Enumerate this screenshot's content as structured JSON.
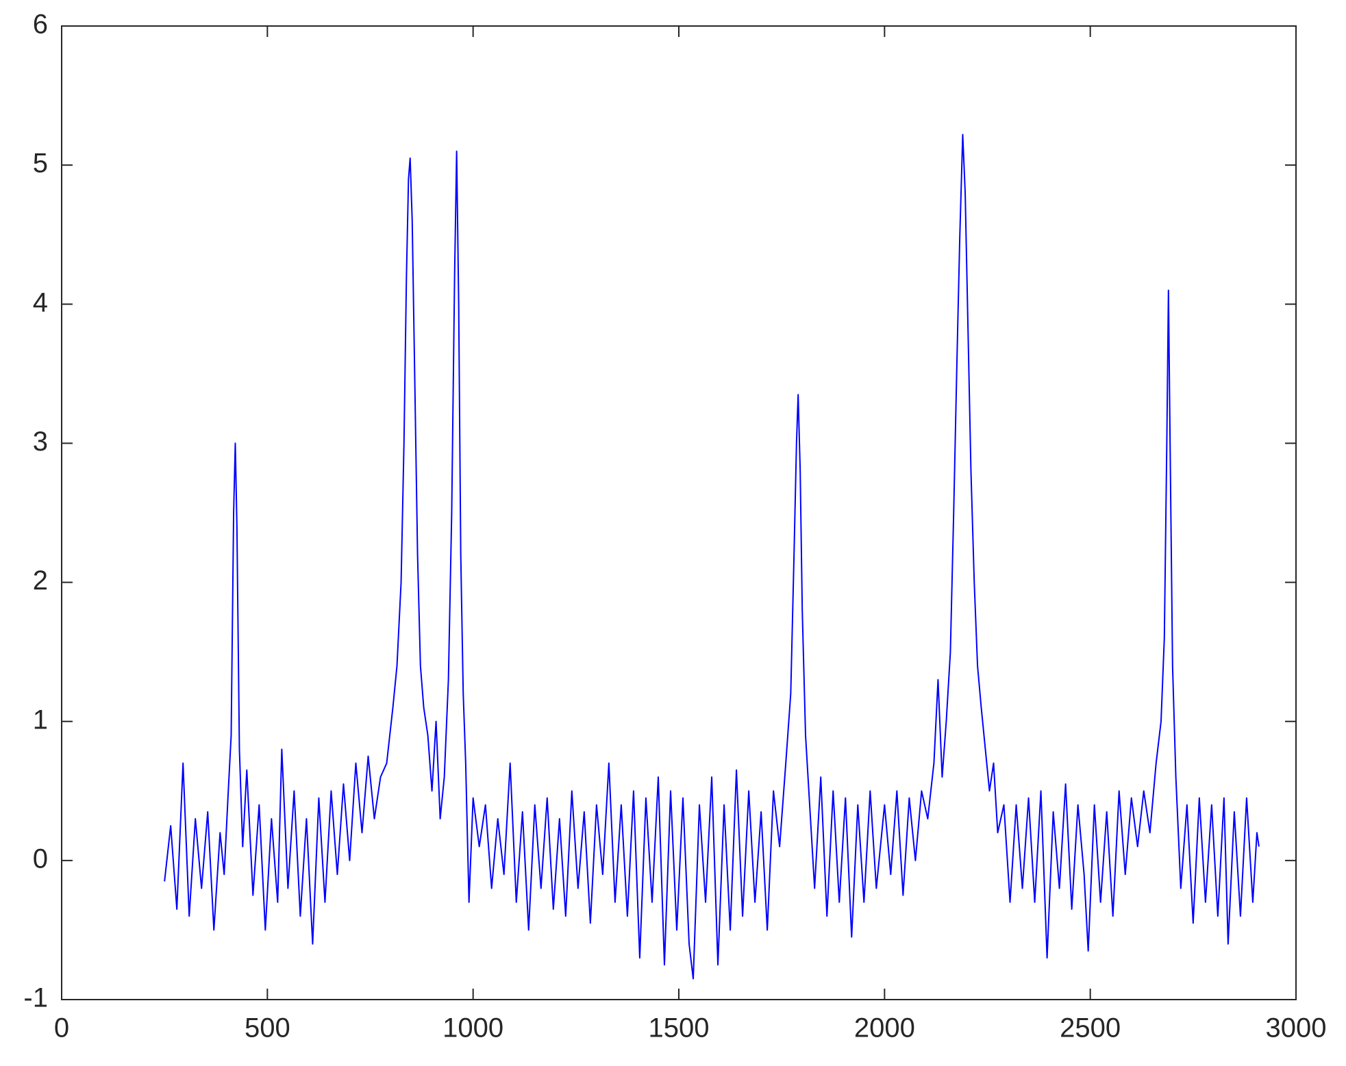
{
  "chart_data": {
    "type": "line",
    "color": "#0000ff",
    "x": [
      250,
      265,
      280,
      295,
      310,
      325,
      340,
      355,
      370,
      385,
      395,
      405,
      412,
      418,
      422,
      426,
      432,
      440,
      450,
      465,
      480,
      495,
      510,
      525,
      535,
      550,
      565,
      580,
      595,
      610,
      625,
      640,
      655,
      670,
      685,
      700,
      715,
      730,
      745,
      760,
      775,
      790,
      805,
      815,
      825,
      832,
      838,
      843,
      847,
      852,
      858,
      865,
      872,
      880,
      890,
      900,
      910,
      920,
      930,
      940,
      948,
      955,
      960,
      965,
      970,
      976,
      982,
      990,
      1000,
      1015,
      1030,
      1045,
      1060,
      1075,
      1090,
      1105,
      1120,
      1135,
      1150,
      1165,
      1180,
      1195,
      1210,
      1225,
      1240,
      1255,
      1270,
      1285,
      1300,
      1315,
      1330,
      1345,
      1360,
      1375,
      1390,
      1405,
      1420,
      1435,
      1450,
      1465,
      1480,
      1495,
      1510,
      1525,
      1535,
      1550,
      1565,
      1580,
      1595,
      1610,
      1625,
      1640,
      1655,
      1670,
      1685,
      1700,
      1715,
      1730,
      1745,
      1760,
      1772,
      1780,
      1786,
      1790,
      1795,
      1800,
      1808,
      1818,
      1830,
      1845,
      1860,
      1875,
      1890,
      1905,
      1920,
      1935,
      1950,
      1965,
      1980,
      2000,
      2015,
      2030,
      2045,
      2060,
      2075,
      2090,
      2105,
      2120,
      2130,
      2140,
      2150,
      2160,
      2168,
      2176,
      2183,
      2190,
      2196,
      2203,
      2210,
      2218,
      2226,
      2235,
      2245,
      2255,
      2265,
      2275,
      2290,
      2305,
      2320,
      2335,
      2350,
      2365,
      2380,
      2395,
      2410,
      2425,
      2440,
      2455,
      2470,
      2485,
      2495,
      2510,
      2525,
      2540,
      2555,
      2570,
      2585,
      2600,
      2615,
      2630,
      2645,
      2660,
      2672,
      2680,
      2686,
      2690,
      2694,
      2700,
      2708,
      2720,
      2735,
      2750,
      2765,
      2780,
      2795,
      2810,
      2825,
      2835,
      2850,
      2865,
      2880,
      2895,
      2905,
      2910
    ],
    "values": [
      -0.15,
      0.25,
      -0.35,
      0.7,
      -0.4,
      0.3,
      -0.2,
      0.35,
      -0.5,
      0.2,
      -0.1,
      0.5,
      0.9,
      2.5,
      3.0,
      2.4,
      0.8,
      0.1,
      0.65,
      -0.25,
      0.4,
      -0.5,
      0.3,
      -0.3,
      0.8,
      -0.2,
      0.5,
      -0.4,
      0.3,
      -0.6,
      0.45,
      -0.3,
      0.5,
      -0.1,
      0.55,
      0.0,
      0.7,
      0.2,
      0.75,
      0.3,
      0.6,
      0.7,
      1.1,
      1.4,
      2.0,
      3.0,
      4.2,
      4.9,
      5.05,
      4.6,
      3.5,
      2.2,
      1.4,
      1.1,
      0.9,
      0.5,
      1.0,
      0.3,
      0.6,
      1.3,
      2.5,
      4.2,
      5.1,
      4.0,
      2.2,
      1.2,
      0.7,
      -0.3,
      0.45,
      0.1,
      0.4,
      -0.2,
      0.3,
      -0.1,
      0.7,
      -0.3,
      0.35,
      -0.5,
      0.4,
      -0.2,
      0.45,
      -0.35,
      0.3,
      -0.4,
      0.5,
      -0.2,
      0.35,
      -0.45,
      0.4,
      -0.1,
      0.7,
      -0.3,
      0.4,
      -0.4,
      0.5,
      -0.7,
      0.45,
      -0.3,
      0.6,
      -0.75,
      0.5,
      -0.5,
      0.45,
      -0.6,
      -0.85,
      0.4,
      -0.3,
      0.6,
      -0.75,
      0.4,
      -0.5,
      0.65,
      -0.4,
      0.5,
      -0.3,
      0.35,
      -0.5,
      0.5,
      0.1,
      0.7,
      1.2,
      2.2,
      3.0,
      3.35,
      2.8,
      1.8,
      0.9,
      0.4,
      -0.2,
      0.6,
      -0.4,
      0.5,
      -0.3,
      0.45,
      -0.55,
      0.4,
      -0.3,
      0.5,
      -0.2,
      0.4,
      -0.1,
      0.5,
      -0.25,
      0.45,
      0.0,
      0.5,
      0.3,
      0.7,
      1.3,
      0.6,
      1.0,
      1.5,
      2.5,
      3.6,
      4.5,
      5.22,
      4.8,
      3.8,
      2.8,
      2.0,
      1.4,
      1.1,
      0.8,
      0.5,
      0.7,
      0.2,
      0.4,
      -0.3,
      0.4,
      -0.2,
      0.45,
      -0.3,
      0.5,
      -0.7,
      0.35,
      -0.2,
      0.55,
      -0.35,
      0.4,
      -0.1,
      -0.65,
      0.4,
      -0.3,
      0.35,
      -0.4,
      0.5,
      -0.1,
      0.45,
      0.1,
      0.5,
      0.2,
      0.7,
      1.0,
      1.6,
      3.0,
      4.1,
      3.0,
      1.4,
      0.6,
      -0.2,
      0.4,
      -0.45,
      0.45,
      -0.3,
      0.4,
      -0.4,
      0.45,
      -0.6,
      0.35,
      -0.4,
      0.45,
      -0.3,
      0.2,
      0.1
    ],
    "xlim": [
      0,
      3000
    ],
    "xticks": [
      0,
      500,
      1000,
      1500,
      2000,
      2500,
      3000
    ],
    "ylim": [
      -1,
      6
    ],
    "yticks": [
      -1,
      0,
      1,
      2,
      3,
      4,
      5,
      6
    ]
  }
}
